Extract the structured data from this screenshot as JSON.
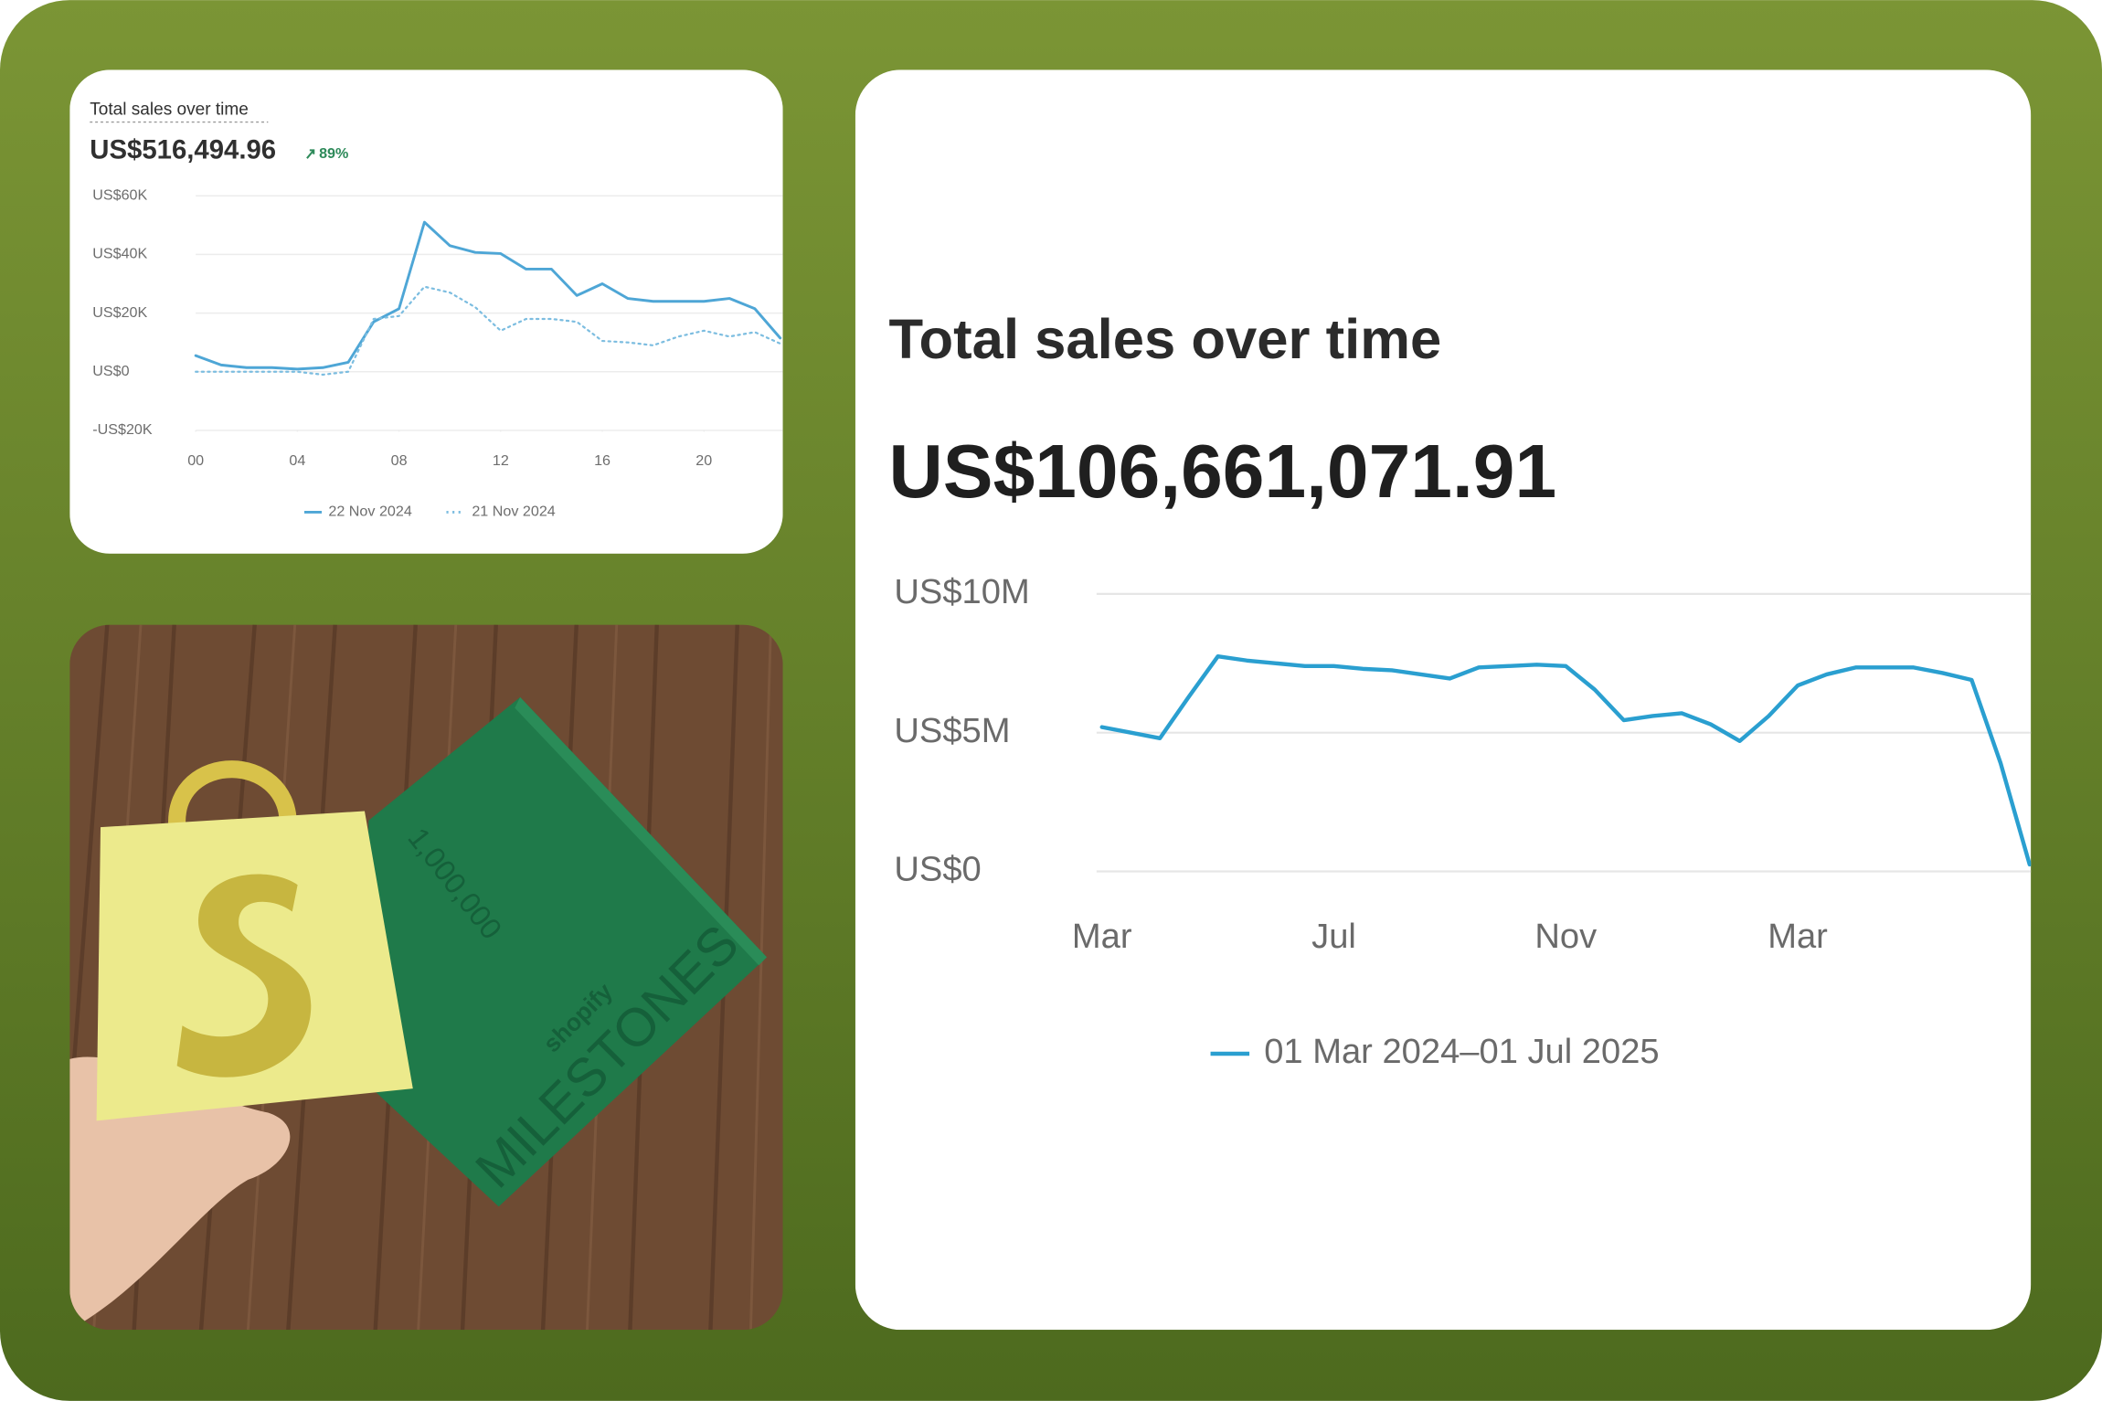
{
  "chart_data": [
    {
      "type": "line",
      "title": "Total sales over time",
      "total": "US$516,494.96",
      "change": "89%",
      "x": [
        0,
        1,
        2,
        3,
        4,
        5,
        6,
        7,
        8,
        9,
        10,
        11,
        12,
        13,
        14,
        15,
        16,
        17,
        18,
        19,
        20,
        21,
        22,
        23
      ],
      "xlim": [
        0,
        23
      ],
      "xticks": [
        {
          "value": 0,
          "label": "00"
        },
        {
          "value": 4,
          "label": "04"
        },
        {
          "value": 8,
          "label": "08"
        },
        {
          "value": 12,
          "label": "12"
        },
        {
          "value": 16,
          "label": "16"
        },
        {
          "value": 20,
          "label": "20"
        }
      ],
      "ylim": [
        -20000,
        60000
      ],
      "yticks": [
        {
          "value": 60000,
          "label": "US$60K"
        },
        {
          "value": 40000,
          "label": "US$40K"
        },
        {
          "value": 20000,
          "label": "US$20K"
        },
        {
          "value": 0,
          "label": "US$0"
        },
        {
          "value": -20000,
          "label": "-US$20K"
        }
      ],
      "grid": true,
      "series": [
        {
          "name": "22 Nov 2024",
          "color": "#4ea6d6",
          "dash": "solid",
          "values": [
            5500,
            2300,
            1400,
            1400,
            900,
            1400,
            3200,
            17000,
            21500,
            51000,
            43000,
            40700,
            40300,
            35000,
            35000,
            26000,
            30000,
            25000,
            24000,
            24000,
            24000,
            25000,
            21500,
            11500
          ]
        },
        {
          "name": "21 Nov 2024",
          "color": "#7cbde0",
          "dash": "dotted",
          "values": [
            0,
            0,
            0,
            0,
            0,
            -1000,
            0,
            18000,
            19000,
            29000,
            27000,
            22000,
            14000,
            18000,
            18000,
            17000,
            10500,
            10000,
            9000,
            12000,
            14000,
            12000,
            13500,
            9600
          ]
        }
      ]
    },
    {
      "type": "line",
      "title": "Total sales over time",
      "total": "US$106,661,071.91",
      "categories": [
        "Mar",
        null,
        null,
        null,
        null,
        null,
        null,
        null,
        "Jul",
        null,
        null,
        null,
        null,
        null,
        null,
        null,
        "Nov",
        null,
        null,
        null,
        null,
        null,
        null,
        null,
        "Mar",
        null,
        null,
        null,
        null,
        null,
        null,
        null,
        null
      ],
      "ylim": [
        0,
        10000000
      ],
      "yticks": [
        {
          "value": 10000000,
          "label": "US$10M"
        },
        {
          "value": 5000000,
          "label": "US$5M"
        },
        {
          "value": 0,
          "label": "US$0"
        }
      ],
      "grid": true,
      "series": [
        {
          "name": "01 Mar 2024–01 Jul 2025",
          "color": "#2a9fd0",
          "dash": "solid",
          "values": [
            5200000,
            5000000,
            4800000,
            6300000,
            7750000,
            7600000,
            7500000,
            7400000,
            7400000,
            7300000,
            7250000,
            7100000,
            6950000,
            7350000,
            7400000,
            7450000,
            7400000,
            6550000,
            5450000,
            5600000,
            5700000,
            5300000,
            4700000,
            5600000,
            6700000,
            7100000,
            7350000,
            7350000,
            7350000,
            7150000,
            6900000,
            3900000,
            250000
          ]
        }
      ]
    }
  ],
  "photo": {
    "box_number": "1,000,000",
    "brand": "shopify",
    "box_title": "MILESTONES"
  }
}
